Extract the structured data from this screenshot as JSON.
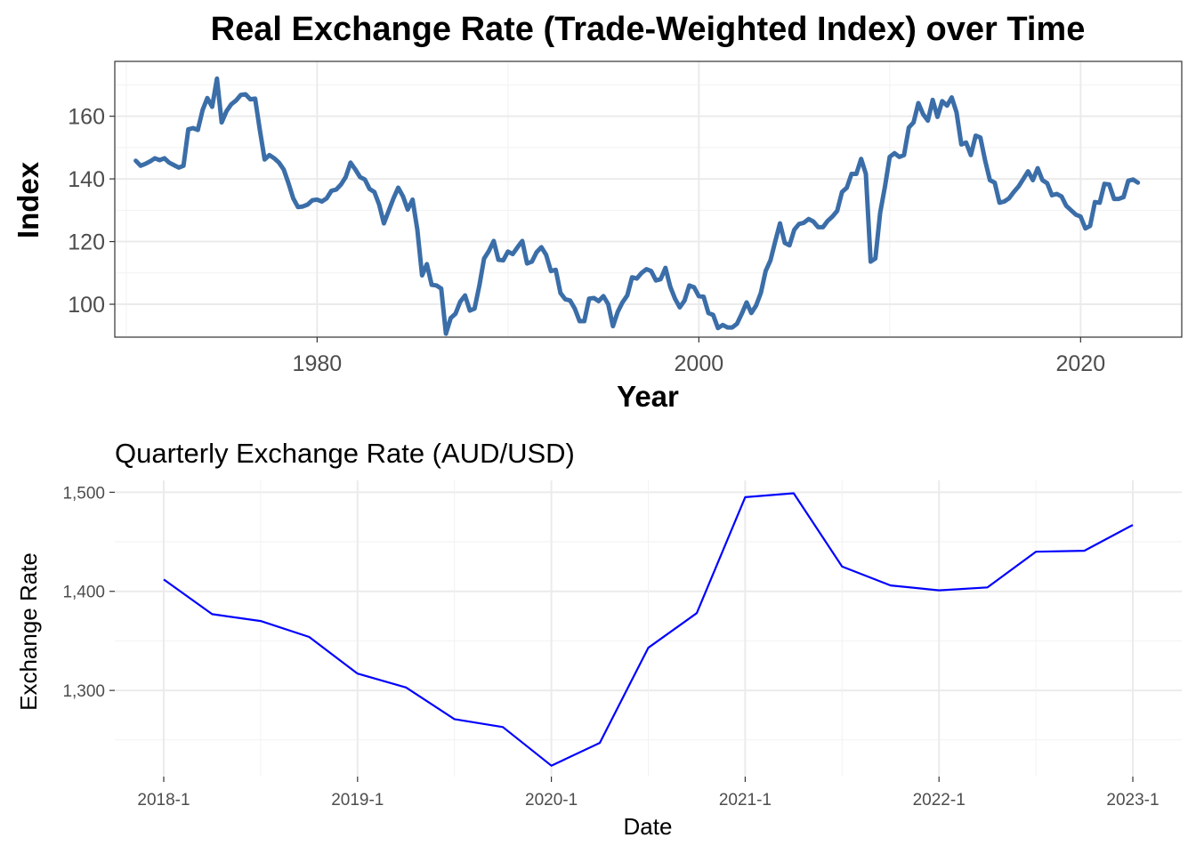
{
  "chart_data": [
    {
      "type": "line",
      "title": "Real Exchange Rate (Trade-Weighted Index) over Time",
      "xlabel": "Year",
      "ylabel": "Index",
      "xlim": [
        1969.4,
        2025.3
      ],
      "ylim": [
        89.5,
        177.5
      ],
      "xticks": [
        1980,
        2000,
        2020
      ],
      "yticks": [
        100,
        120,
        140,
        160
      ],
      "grid": true,
      "panel_border": true,
      "line_color": "#3b6ea8",
      "x": [
        1970.5,
        1970.75,
        1971.0,
        1971.25,
        1971.5,
        1971.75,
        1972.0,
        1972.25,
        1972.5,
        1972.75,
        1973.0,
        1973.25,
        1973.5,
        1973.75,
        1974.0,
        1974.25,
        1974.5,
        1974.75,
        1975.0,
        1975.25,
        1975.5,
        1975.75,
        1976.0,
        1976.25,
        1976.5,
        1976.75,
        1977.0,
        1977.25,
        1977.5,
        1977.75,
        1978.0,
        1978.25,
        1978.5,
        1978.75,
        1979.0,
        1979.25,
        1979.5,
        1979.75,
        1980.0,
        1980.25,
        1980.5,
        1980.75,
        1981.0,
        1981.25,
        1981.5,
        1981.75,
        1982.0,
        1982.25,
        1982.5,
        1982.75,
        1983.0,
        1983.25,
        1983.5,
        1983.75,
        1984.0,
        1984.25,
        1984.5,
        1984.75,
        1985.0,
        1985.25,
        1985.5,
        1985.75,
        1986.0,
        1986.25,
        1986.5,
        1986.75,
        1987.0,
        1987.25,
        1987.5,
        1987.75,
        1988.0,
        1988.25,
        1988.5,
        1988.75,
        1989.0,
        1989.25,
        1989.5,
        1989.75,
        1990.0,
        1990.25,
        1990.5,
        1990.75,
        1991.0,
        1991.25,
        1991.5,
        1991.75,
        1992.0,
        1992.25,
        1992.5,
        1992.75,
        1993.0,
        1993.25,
        1993.5,
        1993.75,
        1994.0,
        1994.25,
        1994.5,
        1994.75,
        1995.0,
        1995.25,
        1995.5,
        1995.75,
        1996.0,
        1996.25,
        1996.5,
        1996.75,
        1997.0,
        1997.25,
        1997.5,
        1997.75,
        1998.0,
        1998.25,
        1998.5,
        1998.75,
        1999.0,
        1999.25,
        1999.5,
        1999.75,
        2000.0,
        2000.25,
        2000.5,
        2000.75,
        2001.0,
        2001.25,
        2001.5,
        2001.75,
        2002.0,
        2002.25,
        2002.5,
        2002.75,
        2003.0,
        2003.25,
        2003.5,
        2003.75,
        2004.0,
        2004.25,
        2004.5,
        2004.75,
        2005.0,
        2005.25,
        2005.5,
        2005.75,
        2006.0,
        2006.25,
        2006.5,
        2006.75,
        2007.0,
        2007.25,
        2007.5,
        2007.75,
        2008.0,
        2008.25,
        2008.5,
        2008.75,
        2009.0,
        2009.25,
        2009.5,
        2009.75,
        2010.0,
        2010.25,
        2010.5,
        2010.75,
        2011.0,
        2011.25,
        2011.5,
        2011.75,
        2012.0,
        2012.25,
        2012.5,
        2012.75,
        2013.0,
        2013.25,
        2013.5,
        2013.75,
        2014.0,
        2014.25,
        2014.5,
        2014.75,
        2015.0,
        2015.25,
        2015.5,
        2015.75,
        2016.0,
        2016.25,
        2016.5,
        2016.75,
        2017.0,
        2017.25,
        2017.5,
        2017.75,
        2018.0,
        2018.25,
        2018.5,
        2018.75,
        2019.0,
        2019.25,
        2019.5,
        2019.75,
        2020.0,
        2020.25,
        2020.5,
        2020.75,
        2021.0,
        2021.25,
        2021.5,
        2021.75,
        2022.0,
        2022.25,
        2022.5,
        2022.75,
        2023.0
      ],
      "values": [
        145.8,
        144.2,
        144.8,
        145.6,
        146.6,
        146.0,
        146.6,
        145.2,
        144.4,
        143.6,
        144.2,
        155.8,
        156.2,
        155.6,
        162.0,
        165.8,
        163.0,
        172.0,
        158.0,
        161.6,
        163.8,
        165.0,
        166.8,
        167.0,
        165.4,
        165.6,
        155.6,
        146.2,
        147.6,
        146.6,
        145.2,
        143.0,
        138.6,
        133.8,
        131.0,
        131.2,
        131.8,
        133.2,
        133.4,
        132.8,
        133.8,
        136.2,
        136.6,
        138.2,
        140.6,
        145.2,
        143.0,
        140.6,
        139.8,
        136.8,
        135.8,
        131.8,
        125.8,
        129.8,
        133.8,
        137.2,
        134.4,
        130.2,
        133.4,
        123.8,
        109.2,
        112.8,
        106.2,
        106.0,
        105.0,
        90.6,
        95.6,
        97.0,
        100.8,
        102.8,
        98.0,
        98.6,
        106.0,
        114.6,
        117.0,
        120.2,
        114.2,
        114.0,
        116.8,
        116.0,
        118.2,
        120.2,
        113.0,
        113.6,
        116.6,
        118.2,
        115.8,
        110.6,
        111.0,
        103.6,
        101.6,
        101.2,
        98.6,
        94.6,
        94.6,
        101.8,
        102.0,
        101.0,
        102.6,
        100.0,
        93.0,
        97.6,
        100.6,
        102.8,
        108.6,
        108.2,
        110.0,
        111.2,
        110.6,
        107.6,
        108.0,
        111.6,
        105.6,
        101.8,
        99.0,
        101.2,
        106.0,
        105.4,
        102.6,
        102.4,
        97.2,
        96.6,
        92.4,
        93.4,
        92.6,
        92.6,
        93.8,
        97.0,
        100.6,
        97.2,
        99.6,
        103.6,
        110.6,
        114.0,
        120.0,
        125.8,
        119.6,
        118.8,
        123.8,
        125.6,
        126.0,
        127.2,
        126.4,
        124.6,
        124.6,
        126.6,
        128.0,
        129.8,
        135.8,
        137.2,
        141.6,
        141.6,
        146.4,
        141.6,
        113.6,
        114.6,
        129.2,
        137.6,
        147.0,
        148.2,
        147.0,
        147.6,
        156.4,
        158.0,
        164.2,
        160.6,
        158.6,
        165.2,
        159.8,
        164.8,
        163.4,
        166.0,
        161.2,
        151.0,
        151.6,
        147.6,
        153.8,
        153.2,
        145.8,
        139.6,
        138.8,
        132.4,
        132.8,
        133.8,
        135.8,
        137.6,
        140.0,
        142.4,
        139.6,
        143.4,
        139.6,
        138.6,
        134.8,
        135.2,
        134.4,
        131.4,
        130.0,
        128.6,
        128.0,
        124.2,
        125.0,
        132.6,
        132.4,
        138.4,
        138.2,
        133.6,
        133.6,
        134.2,
        139.4,
        139.8,
        138.8
      ]
    },
    {
      "type": "line",
      "title": "Quarterly Exchange Rate (AUD/USD)",
      "xlabel": "Date",
      "ylabel": "Exchange Rate",
      "categories": [
        "2018-1",
        "2018-2",
        "2018-3",
        "2018-4",
        "2019-1",
        "2019-2",
        "2019-3",
        "2019-4",
        "2020-1",
        "2020-2",
        "2020-3",
        "2020-4",
        "2021-1",
        "2021-2",
        "2021-3",
        "2021-4",
        "2022-1",
        "2022-2",
        "2022-3",
        "2022-4",
        "2023-1"
      ],
      "tick_labels": [
        "2018-1",
        "2019-1",
        "2020-1",
        "2021-1",
        "2022-1",
        "2023-1"
      ],
      "values": [
        1412,
        1377,
        1370,
        1354,
        1317,
        1303,
        1271,
        1263,
        1224,
        1247,
        1343,
        1378,
        1495,
        1499,
        1425,
        1406,
        1401,
        1404,
        1440,
        1441,
        1467
      ],
      "ylim": [
        1213,
        1512
      ],
      "yticks": [
        1300,
        1400,
        1500
      ],
      "ytick_labels": [
        "1,300",
        "1,400",
        "1,500"
      ],
      "grid": true,
      "panel_border": false,
      "line_color": "#0000ff"
    }
  ]
}
